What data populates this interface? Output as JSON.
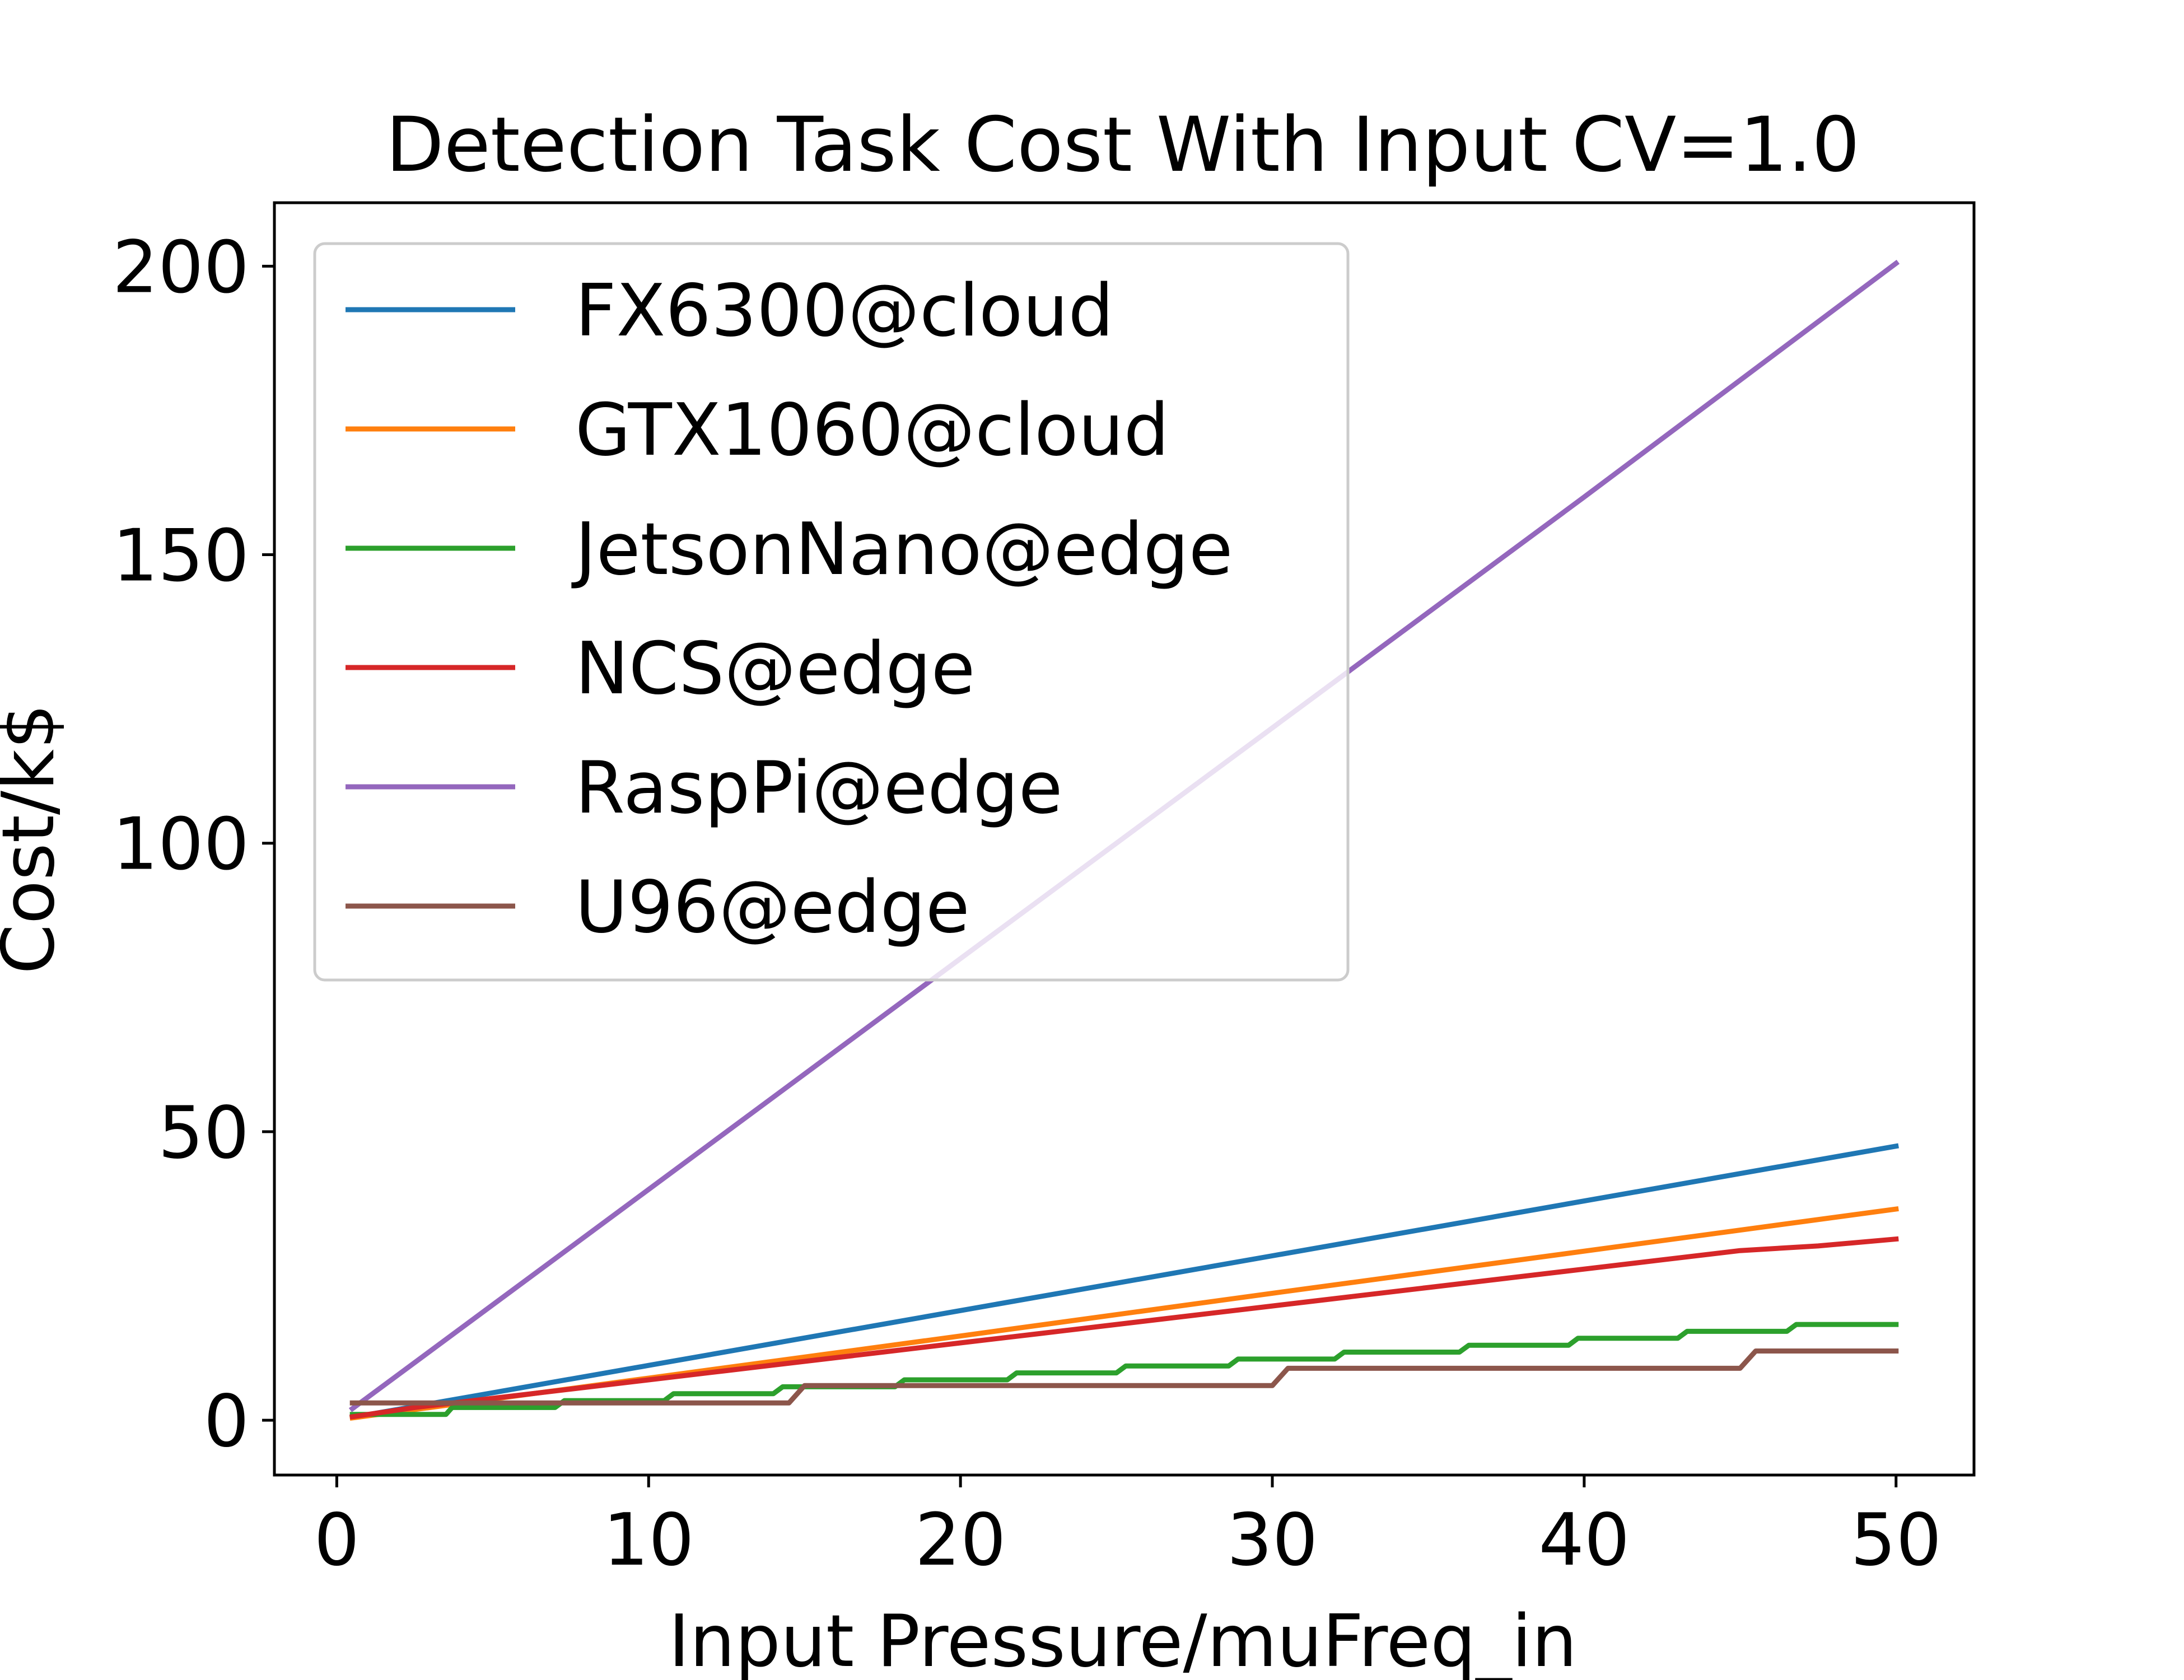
{
  "chart_data": {
    "type": "line",
    "title": "Detection Task Cost With Input CV=1.0",
    "xlabel": "Input Pressure/muFreq_in",
    "ylabel": "Cost/k$",
    "xlim": [
      -2,
      52.5
    ],
    "ylim": [
      -9.5,
      211
    ],
    "xticks": [
      0,
      10,
      20,
      30,
      40,
      50
    ],
    "yticks": [
      0,
      50,
      100,
      150,
      200
    ],
    "grid": false,
    "legend_position": "upper-left",
    "series": [
      {
        "name": "FX6300@cloud",
        "color": "#1f77b4",
        "points": [
          [
            0.5,
            0.5
          ],
          [
            10,
            9.5
          ],
          [
            20,
            19
          ],
          [
            30,
            28.5
          ],
          [
            40,
            38
          ],
          [
            50,
            47.5
          ]
        ]
      },
      {
        "name": "GTX1060@cloud",
        "color": "#ff7f0e",
        "points": [
          [
            0.5,
            0.4
          ],
          [
            10,
            7.3
          ],
          [
            20,
            14.6
          ],
          [
            30,
            22
          ],
          [
            40,
            29.3
          ],
          [
            50,
            36.6
          ]
        ]
      },
      {
        "name": "JetsonNano@edge",
        "color": "#2ca02c",
        "points": [
          [
            0.5,
            1
          ],
          [
            3.5,
            1
          ],
          [
            3.7,
            2.2
          ],
          [
            7,
            2.2
          ],
          [
            7.3,
            3.4
          ],
          [
            10.5,
            3.4
          ],
          [
            10.8,
            4.6
          ],
          [
            14,
            4.6
          ],
          [
            14.3,
            5.8
          ],
          [
            17.9,
            5.8
          ],
          [
            18.2,
            7
          ],
          [
            21.5,
            7
          ],
          [
            21.8,
            8.2
          ],
          [
            25,
            8.2
          ],
          [
            25.3,
            9.4
          ],
          [
            28.6,
            9.4
          ],
          [
            28.9,
            10.6
          ],
          [
            32,
            10.6
          ],
          [
            32.3,
            11.8
          ],
          [
            36,
            11.8
          ],
          [
            36.3,
            13
          ],
          [
            39.5,
            13
          ],
          [
            39.8,
            14.2
          ],
          [
            43,
            14.2
          ],
          [
            43.3,
            15.4
          ],
          [
            46.5,
            15.4
          ],
          [
            46.8,
            16.6
          ],
          [
            50,
            16.6
          ]
        ]
      },
      {
        "name": "NCS@edge",
        "color": "#d62728",
        "points": [
          [
            0.5,
            0.6
          ],
          [
            2.5,
            2.2
          ],
          [
            5,
            3.8
          ],
          [
            7.5,
            5.4
          ],
          [
            10,
            7
          ],
          [
            12.5,
            8.6
          ],
          [
            15,
            10.2
          ],
          [
            17.5,
            11.8
          ],
          [
            20,
            13.4
          ],
          [
            22.5,
            15
          ],
          [
            25,
            16.6
          ],
          [
            27.5,
            18.2
          ],
          [
            30,
            19.8
          ],
          [
            32.5,
            21.4
          ],
          [
            35,
            23
          ],
          [
            37.5,
            24.6
          ],
          [
            40,
            26.2
          ],
          [
            42.5,
            27.8
          ],
          [
            45,
            29.4
          ],
          [
            47.5,
            30.2
          ],
          [
            50,
            31.4
          ]
        ]
      },
      {
        "name": "RaspPi@edge",
        "color": "#9467bd",
        "points": [
          [
            0.5,
            2
          ],
          [
            10,
            40
          ],
          [
            20,
            80
          ],
          [
            30,
            120
          ],
          [
            40,
            160
          ],
          [
            50,
            200.5
          ]
        ]
      },
      {
        "name": "U96@edge",
        "color": "#8c564b",
        "points": [
          [
            0.5,
            3
          ],
          [
            14.5,
            3
          ],
          [
            15,
            6
          ],
          [
            30,
            6
          ],
          [
            30.5,
            9
          ],
          [
            45,
            9
          ],
          [
            45.5,
            12
          ],
          [
            50,
            12
          ]
        ]
      }
    ]
  }
}
